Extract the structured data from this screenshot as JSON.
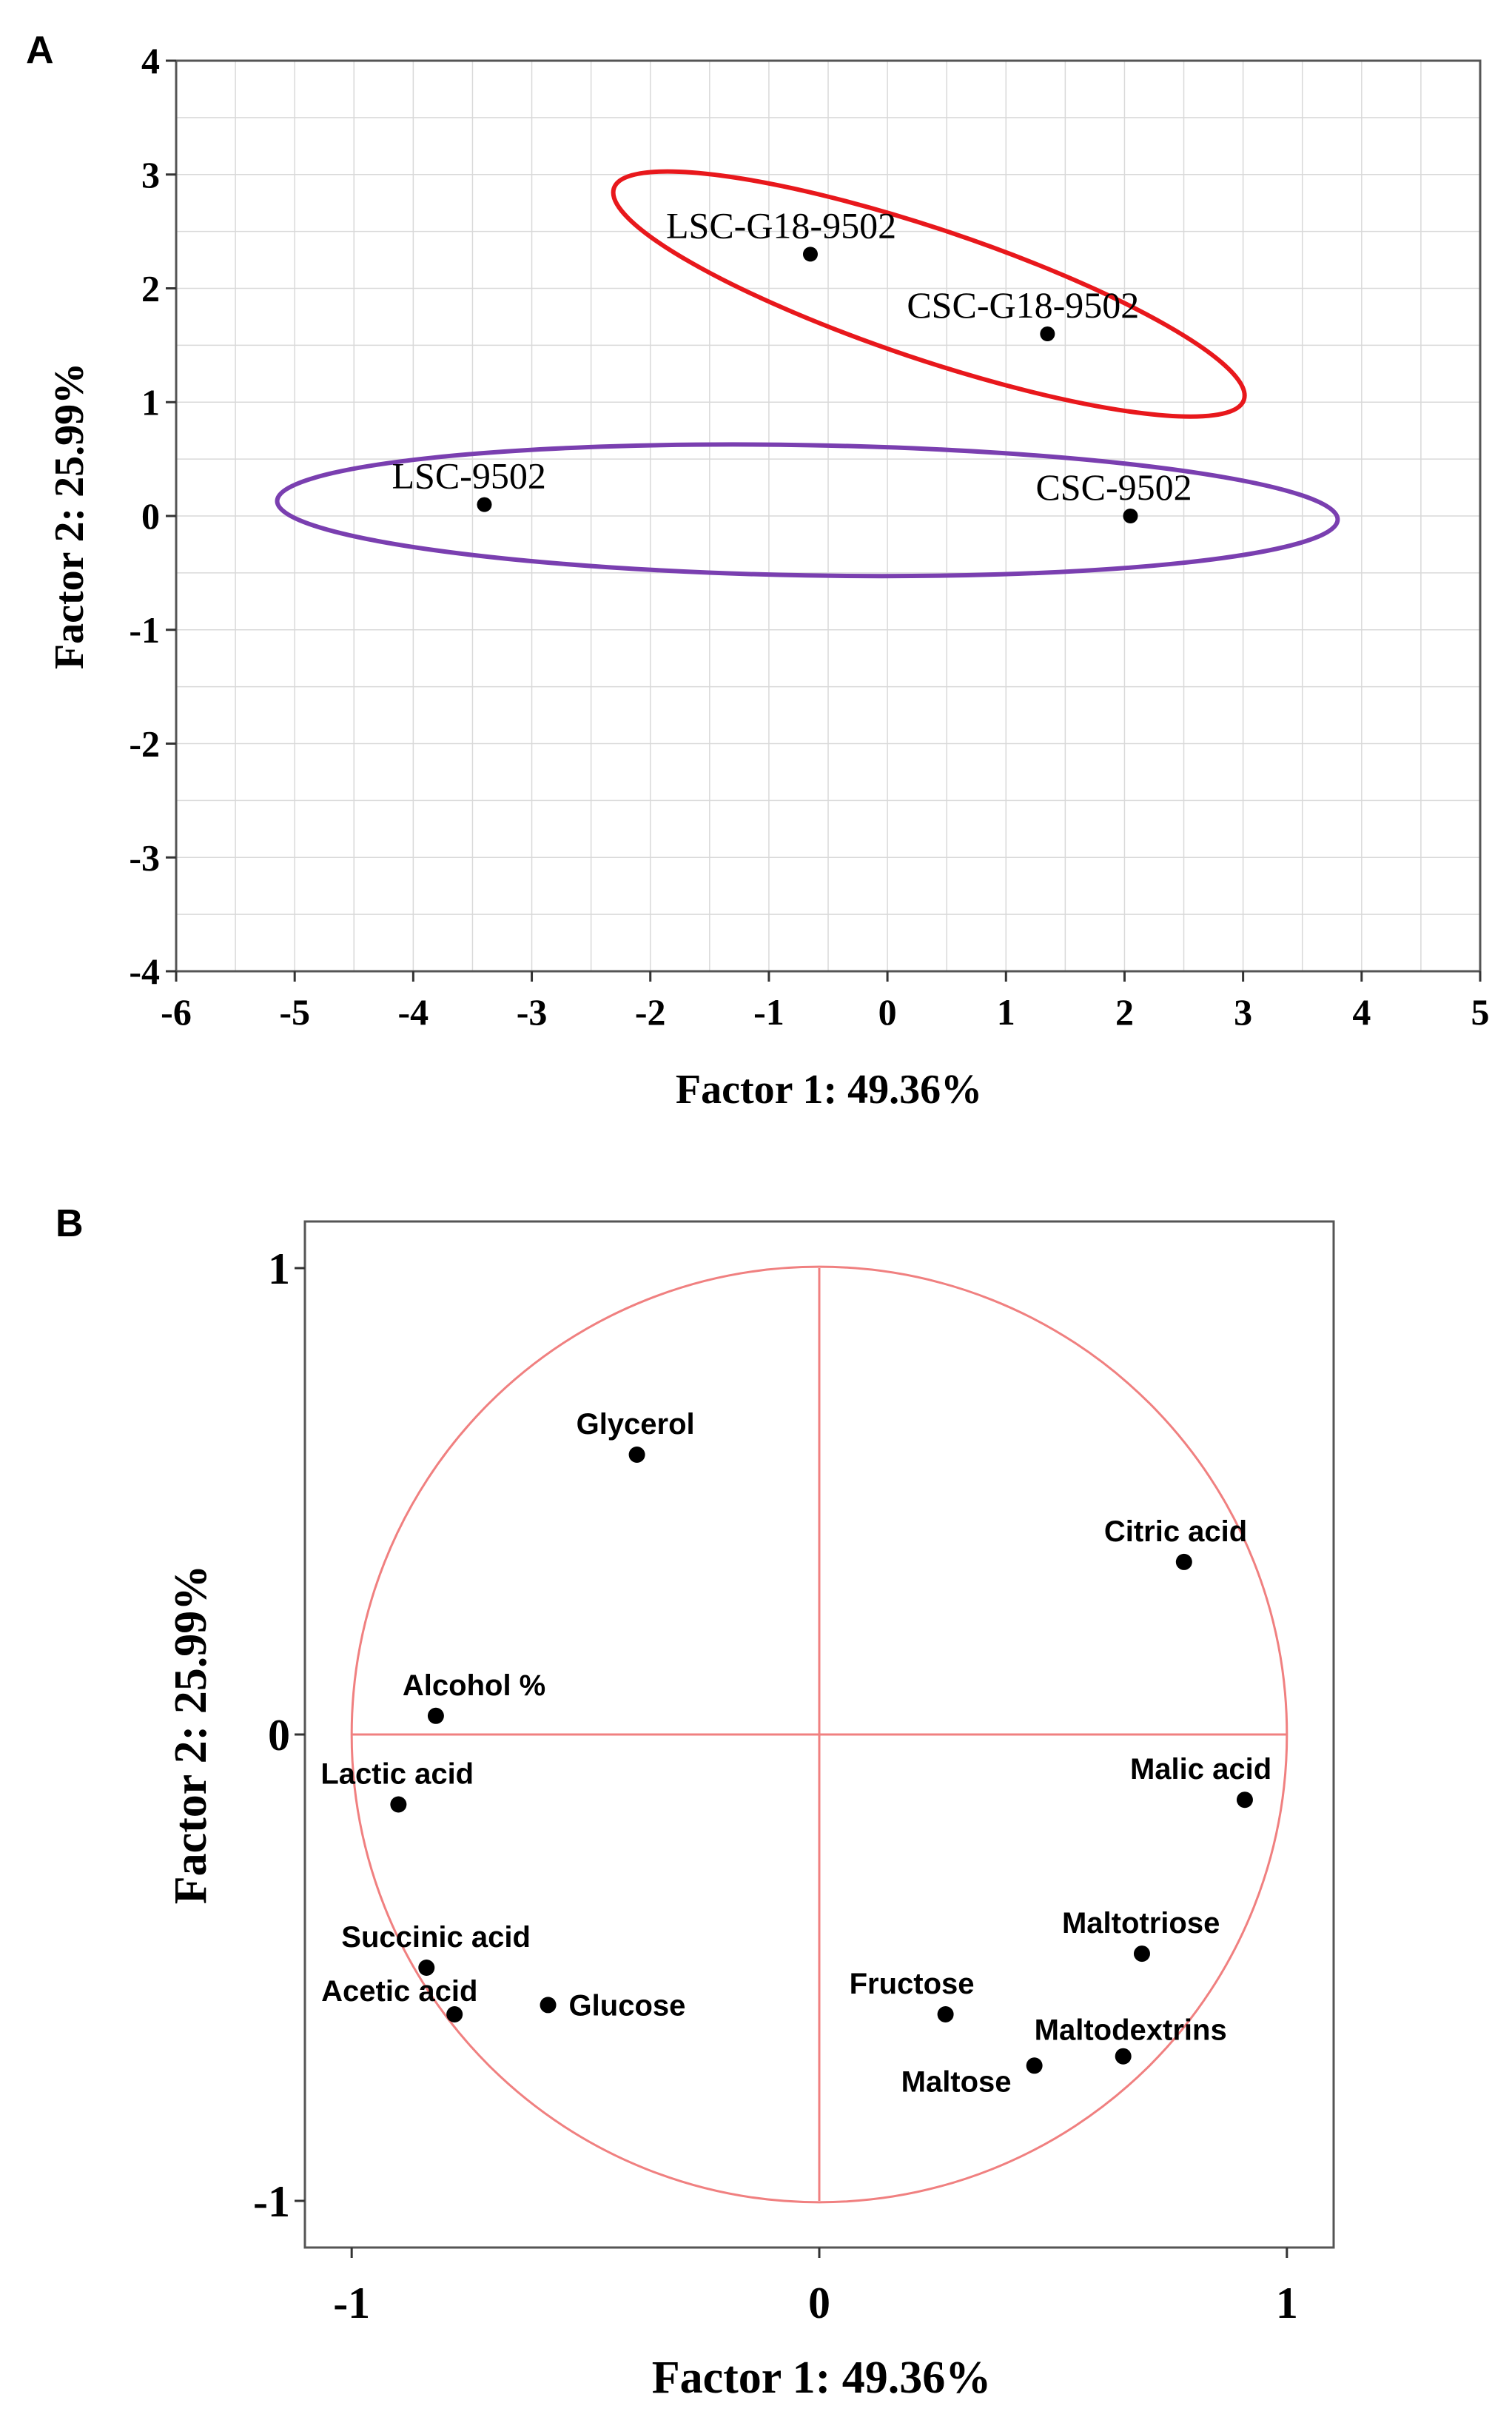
{
  "chart_data": [
    {
      "panel": "A",
      "type": "scatter",
      "title": "",
      "xlabel": "Factor 1: 49.36%",
      "ylabel": "Factor 2: 25.99%",
      "xlim": [
        -6,
        5
      ],
      "ylim": [
        -4,
        4
      ],
      "grid": true,
      "xticks": [
        -6,
        -5,
        -4,
        -3,
        -2,
        -1,
        0,
        1,
        2,
        3,
        4,
        5
      ],
      "yticks": [
        -4,
        -3,
        -2,
        -1,
        0,
        1,
        2,
        3,
        4
      ],
      "points": [
        {
          "name": "LSC-G18-9502",
          "x": -0.65,
          "y": 2.3
        },
        {
          "name": "CSC-G18-9502",
          "x": 1.35,
          "y": 1.6
        },
        {
          "name": "LSC-9502",
          "x": -3.4,
          "y": 0.1
        },
        {
          "name": "CSC-9502",
          "x": 2.05,
          "y": 0.0
        }
      ],
      "groups": [
        {
          "members": [
            "LSC-G18-9502",
            "CSC-G18-9502"
          ],
          "color": "#e8181c"
        },
        {
          "members": [
            "LSC-9502",
            "CSC-9502"
          ],
          "color": "#7a3fb0"
        }
      ]
    },
    {
      "panel": "B",
      "type": "scatter",
      "title": "",
      "xlabel": "Factor 1: 49.36%",
      "ylabel": "Factor 2: 25.99%",
      "xlim": [
        -1.1,
        1.1
      ],
      "ylim": [
        -1.1,
        1.1
      ],
      "grid": false,
      "xticks": [
        -1,
        0,
        1
      ],
      "yticks": [
        -1,
        0,
        1
      ],
      "unit_circle": true,
      "circle_color": "#f08080",
      "points": [
        {
          "name": "Glycerol",
          "x": -0.39,
          "y": 0.6
        },
        {
          "name": "Citric acid",
          "x": 0.78,
          "y": 0.37
        },
        {
          "name": "Alcohol %",
          "x": -0.82,
          "y": 0.04
        },
        {
          "name": "Lactic acid",
          "x": -0.9,
          "y": -0.15
        },
        {
          "name": "Malic acid",
          "x": 0.91,
          "y": -0.14
        },
        {
          "name": "Maltotriose",
          "x": 0.69,
          "y": -0.47
        },
        {
          "name": "Succinic acid",
          "x": -0.84,
          "y": -0.5
        },
        {
          "name": "Acetic acid",
          "x": -0.78,
          "y": -0.6
        },
        {
          "name": "Glucose",
          "x": -0.58,
          "y": -0.58
        },
        {
          "name": "Fructose",
          "x": 0.27,
          "y": -0.6
        },
        {
          "name": "Maltodextrins",
          "x": 0.65,
          "y": -0.69
        },
        {
          "name": "Maltose",
          "x": 0.46,
          "y": -0.71
        }
      ]
    }
  ],
  "panels": {
    "a_letter": "A",
    "b_letter": "B"
  }
}
